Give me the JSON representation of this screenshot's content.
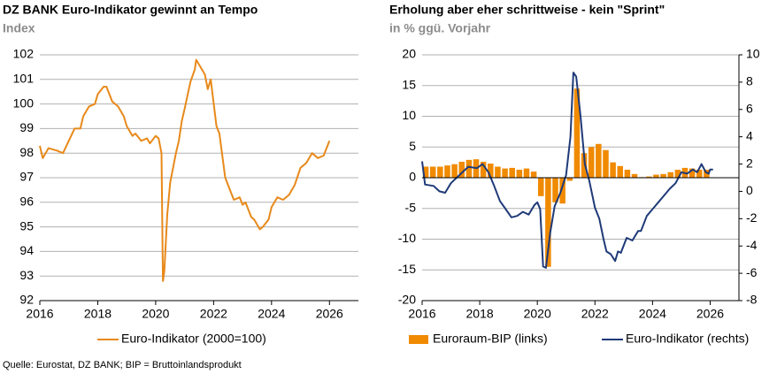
{
  "chart_data": [
    {
      "type": "line",
      "title": "DZ BANK Euro-Indikator gewinnt an Tempo",
      "subtitle": "Index",
      "xlim": [
        2016,
        2027
      ],
      "xticks": [
        2016,
        2018,
        2020,
        2022,
        2024,
        2026
      ],
      "ylim": [
        92,
        102
      ],
      "yticks": [
        92,
        93,
        94,
        95,
        96,
        97,
        98,
        99,
        100,
        101,
        102
      ],
      "grid": true,
      "series": [
        {
          "name": "Euro-Indikator (2000=100)",
          "type": "line",
          "color": "#e8891a",
          "x": [
            2016.0,
            2016.1,
            2016.3,
            2016.6,
            2016.8,
            2017.0,
            2017.2,
            2017.4,
            2017.5,
            2017.7,
            2017.9,
            2018.0,
            2018.2,
            2018.3,
            2018.5,
            2018.7,
            2018.9,
            2019.0,
            2019.2,
            2019.3,
            2019.5,
            2019.7,
            2019.8,
            2020.0,
            2020.1,
            2020.2,
            2020.25,
            2020.3,
            2020.4,
            2020.5,
            2020.7,
            2020.8,
            2020.9,
            2021.0,
            2021.2,
            2021.35,
            2021.4,
            2021.6,
            2021.7,
            2021.8,
            2021.9,
            2022.1,
            2022.2,
            2022.4,
            2022.6,
            2022.7,
            2022.9,
            2023.0,
            2023.1,
            2023.3,
            2023.4,
            2023.6,
            2023.7,
            2023.9,
            2024.0,
            2024.2,
            2024.4,
            2024.6,
            2024.8,
            2025.0,
            2025.2,
            2025.4,
            2025.6,
            2025.8,
            2026.0
          ],
          "values": [
            98.3,
            97.8,
            98.2,
            98.1,
            98.0,
            98.5,
            99.0,
            99.0,
            99.5,
            99.9,
            100.0,
            100.4,
            100.7,
            100.7,
            100.1,
            99.9,
            99.5,
            99.1,
            98.7,
            98.8,
            98.5,
            98.6,
            98.4,
            98.7,
            98.6,
            98.0,
            92.8,
            93.2,
            95.5,
            96.8,
            98.0,
            98.5,
            99.3,
            99.8,
            100.9,
            101.4,
            101.8,
            101.4,
            101.2,
            100.6,
            101.0,
            99.1,
            98.8,
            97.0,
            96.4,
            96.1,
            96.2,
            95.9,
            96.0,
            95.4,
            95.3,
            94.9,
            95.0,
            95.3,
            95.8,
            96.2,
            96.1,
            96.3,
            96.7,
            97.4,
            97.6,
            98.0,
            97.8,
            97.9,
            98.5
          ]
        }
      ]
    },
    {
      "type": "combo",
      "title": "Erholung aber eher schrittweise - kein \"Sprint\"",
      "subtitle": "in % ggü. Vorjahr",
      "xlim": [
        2016,
        2027
      ],
      "xticks": [
        2016,
        2018,
        2020,
        2022,
        2024,
        2026
      ],
      "ylim": [
        -20,
        20
      ],
      "yticks": [
        -20,
        -15,
        -10,
        -5,
        0,
        5,
        10,
        15,
        20
      ],
      "y2lim": [
        -8,
        10
      ],
      "y2ticks": [
        -8,
        -6,
        -4,
        -2,
        0,
        2,
        4,
        6,
        8,
        10
      ],
      "grid": true,
      "series": [
        {
          "name": "Euroraum-BIP (links)",
          "type": "bar",
          "color": "#f08a00",
          "x": [
            2016.125,
            2016.375,
            2016.625,
            2016.875,
            2017.125,
            2017.375,
            2017.625,
            2017.875,
            2018.125,
            2018.375,
            2018.625,
            2018.875,
            2019.125,
            2019.375,
            2019.625,
            2019.875,
            2020.125,
            2020.375,
            2020.625,
            2020.875,
            2021.125,
            2021.375,
            2021.625,
            2021.875,
            2022.125,
            2022.375,
            2022.625,
            2022.875,
            2023.125,
            2023.375,
            2023.625,
            2023.875,
            2024.125,
            2024.375,
            2024.625,
            2024.875,
            2025.125,
            2025.375,
            2025.625,
            2025.875
          ],
          "values": [
            1.8,
            1.8,
            1.8,
            2.0,
            2.2,
            2.6,
            2.9,
            3.0,
            2.6,
            2.3,
            1.8,
            1.5,
            1.6,
            1.3,
            1.5,
            1.0,
            -3.0,
            -14.5,
            -4.0,
            -4.2,
            -0.5,
            14.5,
            4.0,
            5.0,
            5.5,
            4.5,
            2.5,
            1.9,
            1.3,
            0.6,
            0.1,
            0.2,
            0.5,
            0.6,
            0.9,
            1.3,
            1.6,
            1.5,
            1.3,
            1.3
          ]
        },
        {
          "name": "Euro-Indikator (rechts)",
          "type": "line",
          "axis": "y2",
          "color": "#1f3a78",
          "x": [
            2016.0,
            2016.1,
            2016.4,
            2016.6,
            2016.8,
            2017.0,
            2017.3,
            2017.6,
            2017.9,
            2018.1,
            2018.3,
            2018.5,
            2018.7,
            2018.9,
            2019.1,
            2019.3,
            2019.5,
            2019.7,
            2019.9,
            2020.0,
            2020.1,
            2020.2,
            2020.3,
            2020.45,
            2020.6,
            2020.8,
            2021.0,
            2021.15,
            2021.25,
            2021.35,
            2021.5,
            2021.65,
            2021.8,
            2022.0,
            2022.15,
            2022.3,
            2022.4,
            2022.55,
            2022.7,
            2022.8,
            2022.9,
            2023.1,
            2023.3,
            2023.5,
            2023.6,
            2023.8,
            2024.0,
            2024.2,
            2024.4,
            2024.6,
            2024.8,
            2025.0,
            2025.2,
            2025.4,
            2025.55,
            2025.7,
            2025.85,
            2025.95,
            2026.0,
            2026.1
          ],
          "values": [
            2.2,
            0.5,
            0.4,
            0.0,
            -0.1,
            0.6,
            1.2,
            1.8,
            1.7,
            2.0,
            1.4,
            0.4,
            -0.7,
            -1.3,
            -1.9,
            -1.8,
            -1.5,
            -1.7,
            -1.0,
            -0.8,
            -1.3,
            -5.5,
            -5.6,
            -3.0,
            -1.1,
            -0.1,
            1.2,
            4.0,
            8.7,
            8.4,
            5.5,
            2.0,
            0.8,
            -1.2,
            -2.0,
            -3.5,
            -4.4,
            -4.6,
            -5.1,
            -4.4,
            -4.5,
            -3.4,
            -3.6,
            -2.9,
            -2.9,
            -1.8,
            -1.3,
            -0.8,
            -0.3,
            0.2,
            0.6,
            1.4,
            1.3,
            1.6,
            1.4,
            2.0,
            1.4,
            1.3,
            1.6,
            1.6
          ]
        }
      ]
    }
  ],
  "source": "Quelle: Eurostat, DZ BANK; BIP = Bruttoinlandsprodukt"
}
